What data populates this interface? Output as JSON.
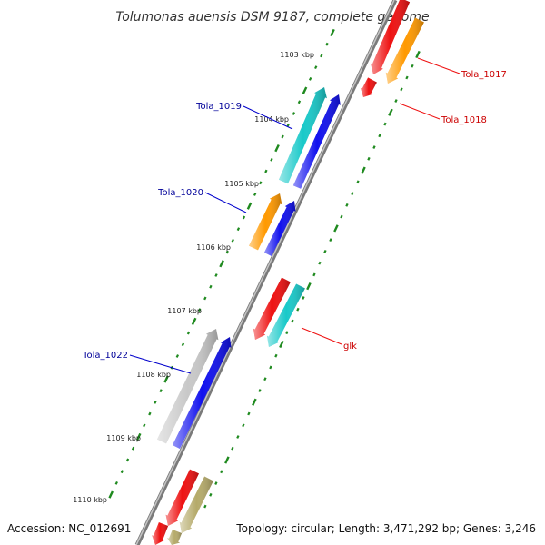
{
  "title": "Tolumonas auensis DSM 9187, complete genome",
  "accession": "Accession: NC_012691",
  "summary": "Topology: circular; Length: 3,471,292 bp; Genes: 3,246",
  "colors": {
    "backbone": "#8a8a8a",
    "ticks": "#1f8a1f",
    "red": "#ee1111",
    "orange": "#ff9900",
    "cyan": "#19c9c9",
    "blue": "#1111ee",
    "gray": "#c8c8c8",
    "khaki": "#b5aa6a",
    "label_forward": "#cc0000",
    "label_reverse": "#000099"
  },
  "kbp_labels": [
    "1103 kbp",
    "1104 kbp",
    "1105 kbp",
    "1106 kbp",
    "1107 kbp",
    "1108 kbp",
    "1109 kbp",
    "1110 kbp"
  ],
  "gene_labels": [
    {
      "name": "Tola_1017",
      "strand": "forward"
    },
    {
      "name": "Tola_1018",
      "strand": "forward"
    },
    {
      "name": "Tola_1019",
      "strand": "reverse"
    },
    {
      "name": "Tola_1020",
      "strand": "reverse"
    },
    {
      "name": "glk",
      "strand": "forward"
    },
    {
      "name": "Tola_1022",
      "strand": "reverse"
    }
  ]
}
